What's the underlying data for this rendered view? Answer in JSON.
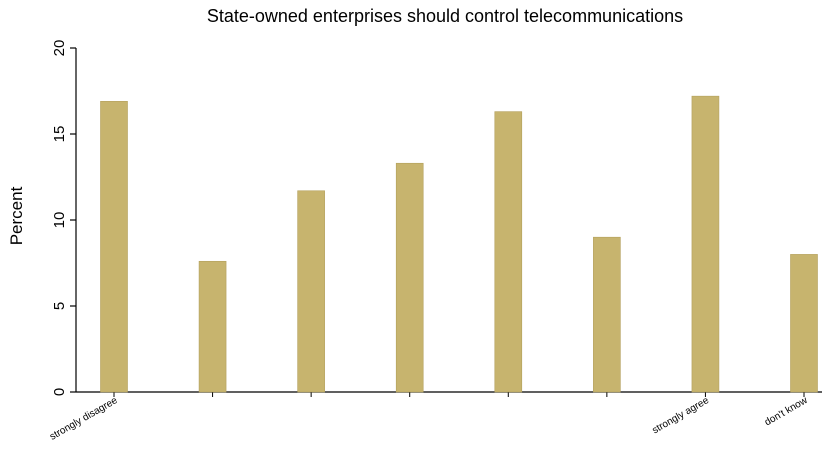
{
  "chart_data": {
    "type": "bar",
    "title": "State-owned enterprises should control telecommunications",
    "xlabel": "",
    "ylabel": "Percent",
    "ylim": [
      0,
      20
    ],
    "yticks": [
      0,
      5,
      10,
      15,
      20
    ],
    "grid": false,
    "legend": "none",
    "categories": [
      "strongly disagree",
      "",
      "",
      "",
      "",
      "",
      "strongly agree",
      "don't know"
    ],
    "values": [
      16.9,
      7.6,
      11.7,
      13.3,
      16.3,
      9.0,
      17.2,
      8.0
    ],
    "colors": {
      "bar": "#c7b46e",
      "bar_edge": "#b3a05c",
      "plot_background": "#ffffff",
      "outer_background": "#ffffff",
      "axis": "#000000"
    }
  }
}
